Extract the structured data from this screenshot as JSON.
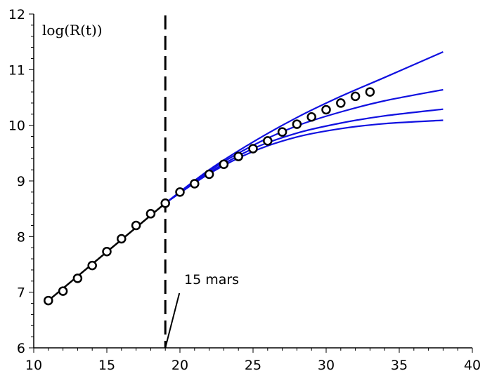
{
  "chart_data": {
    "type": "line",
    "title": "",
    "xlabel": "",
    "ylabel": "log(R(t))",
    "xlim": [
      10,
      40
    ],
    "ylim": [
      6,
      12
    ],
    "xticks": [
      10,
      15,
      20,
      25,
      30,
      35,
      40
    ],
    "yticks": [
      6,
      7,
      8,
      9,
      10,
      11,
      12
    ],
    "grid": false,
    "vline": {
      "x": 19,
      "style": "dashed"
    },
    "annotation": {
      "text": "15 mars",
      "x": 19
    },
    "fit_line": {
      "x": [
        11,
        19
      ],
      "y": [
        6.85,
        8.6
      ],
      "color": "#000000"
    },
    "observed_points": {
      "x": [
        11,
        12,
        13,
        14,
        15,
        16,
        17,
        18,
        19,
        20,
        21,
        22,
        23,
        24,
        25,
        26,
        27,
        28,
        29,
        30,
        31,
        32,
        33
      ],
      "y": [
        6.85,
        7.02,
        7.25,
        7.48,
        7.73,
        7.96,
        8.2,
        8.41,
        8.6,
        8.8,
        8.95,
        9.12,
        9.3,
        9.44,
        9.58,
        9.72,
        9.88,
        10.02,
        10.15,
        10.28,
        10.4,
        10.52,
        10.6
      ]
    },
    "series": [
      {
        "color": "#1010e0",
        "x": [
          19,
          22,
          25,
          28,
          31,
          34,
          38
        ],
        "y": [
          8.6,
          9.2,
          9.7,
          10.14,
          10.52,
          10.86,
          11.32
        ]
      },
      {
        "color": "#1010e0",
        "x": [
          19,
          22,
          25,
          28,
          31,
          34,
          38
        ],
        "y": [
          8.6,
          9.18,
          9.64,
          9.99,
          10.24,
          10.44,
          10.64
        ]
      },
      {
        "color": "#1010e0",
        "x": [
          19,
          22,
          25,
          28,
          31,
          34,
          38
        ],
        "y": [
          8.6,
          9.15,
          9.58,
          9.86,
          10.04,
          10.17,
          10.29
        ]
      },
      {
        "color": "#1010e0",
        "x": [
          19,
          22,
          25,
          28,
          31,
          34,
          38
        ],
        "y": [
          8.6,
          9.13,
          9.53,
          9.79,
          9.94,
          10.03,
          10.09
        ]
      }
    ]
  }
}
